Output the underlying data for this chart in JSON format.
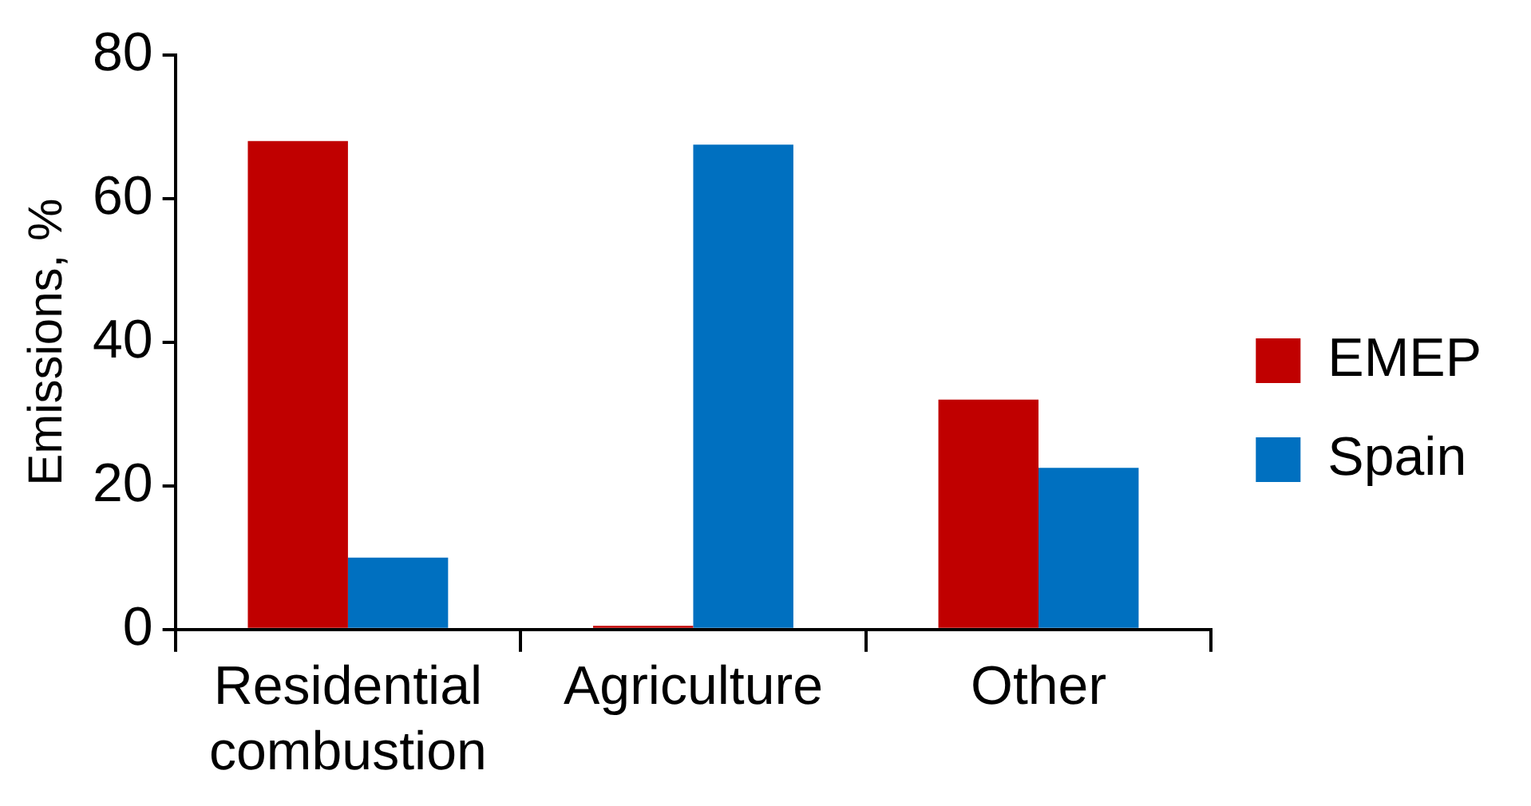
{
  "chart_data": {
    "type": "bar",
    "ylabel": "Emissions, %",
    "categories": [
      "Residential combustion",
      "Agriculture",
      "Other"
    ],
    "series": [
      {
        "name": "EMEP",
        "color": "#c00000",
        "values": [
          68,
          0.5,
          32
        ]
      },
      {
        "name": "Spain",
        "color": "#0070c0",
        "values": [
          10,
          67.5,
          22.5
        ]
      }
    ],
    "ylim": [
      0,
      80
    ],
    "yticks": [
      0,
      20,
      40,
      60,
      80
    ],
    "grid": false,
    "legend": "right"
  }
}
